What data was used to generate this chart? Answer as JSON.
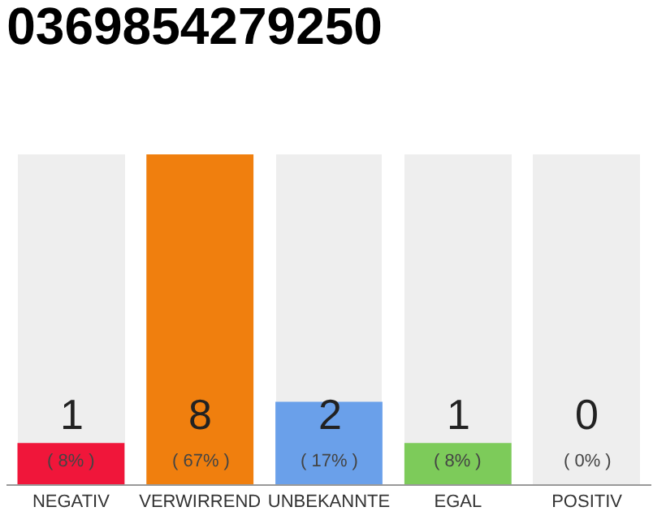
{
  "chart_data": {
    "type": "bar",
    "title": "0369854279250",
    "categories": [
      "NEGATIV",
      "VERWIRREND",
      "UNBEKANNTE",
      "EGAL",
      "POSITIV"
    ],
    "values": [
      1,
      8,
      2,
      1,
      0
    ],
    "colors": [
      "#f0163a",
      "#f07f0e",
      "#6aa0ea",
      "#7dcb5a",
      "#cccccc"
    ],
    "value_labels": [
      "1\n( 8% )",
      "8\n( 67% )",
      "2\n( 17% )",
      "1\n( 8% )",
      "0\n( 0% )"
    ]
  }
}
